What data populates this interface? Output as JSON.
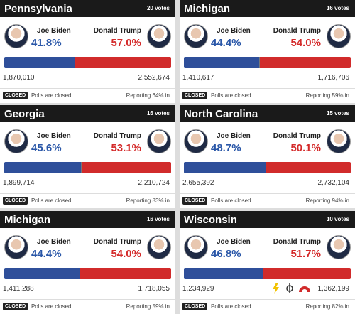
{
  "panels": [
    {
      "state": "Pennsylvania",
      "votes": "20 votes",
      "biden": {
        "name": "Joe Biden",
        "pct": "41.8%",
        "count": "1,870,010"
      },
      "trump": {
        "name": "Donald Trump",
        "pct": "57.0%",
        "count": "2,552,674"
      },
      "badge": "CLOSED",
      "status": "Polls are closed",
      "reporting": "Reporting 64% in"
    },
    {
      "state": "Michigan",
      "votes": "16 votes",
      "biden": {
        "name": "Joe Biden",
        "pct": "44.4%",
        "count": "1,410,617"
      },
      "trump": {
        "name": "Donald Trump",
        "pct": "54.0%",
        "count": "1,716,706"
      },
      "badge": "CLOSED",
      "status": "Polls are closed",
      "reporting": "Reporting 59% in"
    },
    {
      "state": "Georgia",
      "votes": "16 votes",
      "biden": {
        "name": "Joe Biden",
        "pct": "45.6%",
        "count": "1,899,714"
      },
      "trump": {
        "name": "Donald Trump",
        "pct": "53.1%",
        "count": "2,210,724"
      },
      "badge": "CLOSED",
      "status": "Polls are closed",
      "reporting": "Reporting 83% in"
    },
    {
      "state": "North Carolina",
      "votes": "15 votes",
      "biden": {
        "name": "Joe Biden",
        "pct": "48.7%",
        "count": "2,655,392"
      },
      "trump": {
        "name": "Donald Trump",
        "pct": "50.1%",
        "count": "2,732,104"
      },
      "badge": "CLOSED",
      "status": "Polls are closed",
      "reporting": "Reporting 94% in"
    },
    {
      "state": "Michigan",
      "votes": "16 votes",
      "biden": {
        "name": "Joe Biden",
        "pct": "44.4%",
        "count": "1,411,288"
      },
      "trump": {
        "name": "Donald Trump",
        "pct": "54.0%",
        "count": "1,718,055"
      },
      "badge": "CLOSED",
      "status": "Polls are closed",
      "reporting": "Reporting 59% in"
    },
    {
      "state": "Wisconsin",
      "votes": "10 votes",
      "biden": {
        "name": "Joe Biden",
        "pct": "46.8%",
        "count": "1,234,929"
      },
      "trump": {
        "name": "Donald Trump",
        "pct": "51.7%",
        "count": "1,362,199"
      },
      "badge": "CLOSED",
      "status": "Polls are closed",
      "reporting": "Reporting 82% in"
    }
  ]
}
